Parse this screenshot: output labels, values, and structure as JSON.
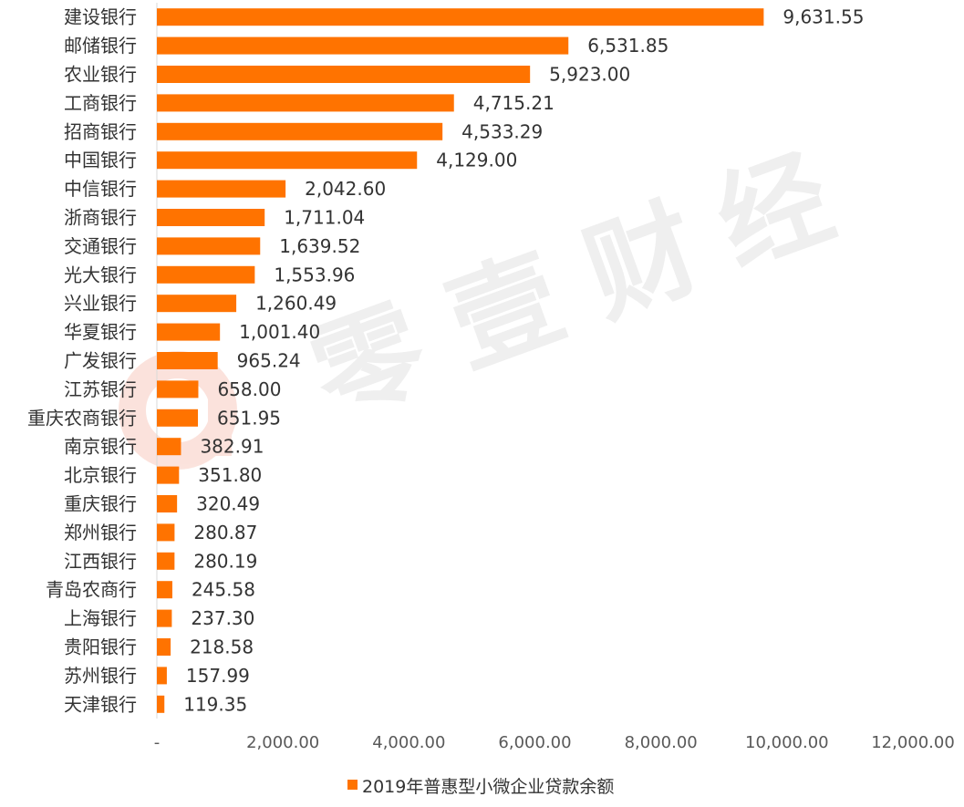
{
  "chart_data": {
    "type": "bar",
    "orientation": "horizontal",
    "categories": [
      "建设银行",
      "邮储银行",
      "农业银行",
      "工商银行",
      "招商银行",
      "中国银行",
      "中信银行",
      "浙商银行",
      "交通银行",
      "光大银行",
      "兴业银行",
      "华夏银行",
      "广发银行",
      "江苏银行",
      "重庆农商银行",
      "南京银行",
      "北京银行",
      "重庆银行",
      "郑州银行",
      "江西银行",
      "青岛农商行",
      "上海银行",
      "贵阳银行",
      "苏州银行",
      "天津银行"
    ],
    "values": [
      9631.55,
      6531.85,
      5923.0,
      4715.21,
      4533.29,
      4129.0,
      2042.6,
      1711.04,
      1639.52,
      1553.96,
      1260.49,
      1001.4,
      965.24,
      658.0,
      651.95,
      382.91,
      351.8,
      320.49,
      280.87,
      280.19,
      245.58,
      237.3,
      218.58,
      157.99,
      119.35
    ],
    "value_labels": [
      "9,631.55",
      "6,531.85",
      "5,923.00",
      "4,715.21",
      "4,533.29",
      "4,129.00",
      "2,042.60",
      "1,711.04",
      "1,639.52",
      "1,553.96",
      "1,260.49",
      "1,001.40",
      "965.24",
      "658.00",
      "651.95",
      "382.91",
      "351.80",
      "320.49",
      "280.87",
      "280.19",
      "245.58",
      "237.30",
      "218.58",
      "157.99",
      "119.35"
    ],
    "series": [
      {
        "name": "2019年普惠型小微企业贷款余额",
        "color": "#FF7300"
      }
    ],
    "xlim": [
      0,
      12000
    ],
    "x_ticks": [
      0,
      2000,
      4000,
      6000,
      8000,
      10000,
      12000
    ],
    "x_tick_labels": [
      "-",
      "2,000.00",
      "4,000.00",
      "6,000.00",
      "8,000.00",
      "10,000.00",
      "12,000.00"
    ],
    "legend_position": "bottom",
    "grid": false
  },
  "watermark": {
    "text": [
      "零",
      "壹",
      "财",
      "经"
    ],
    "logo_color": "#E8502A"
  }
}
